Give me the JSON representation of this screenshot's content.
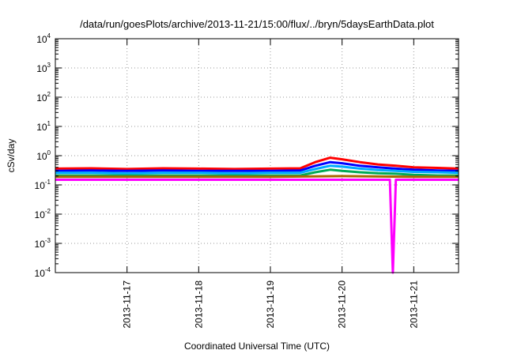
{
  "chart_data": {
    "type": "line",
    "title": "/data/run/goesPlots/archive/2013-11-21/15:00/flux/../bryn/5daysEarthData.plot",
    "xlabel": "Coordinated Universal Time (UTC)",
    "ylabel": "cSv/day",
    "y_scale": "log",
    "ylim": [
      0.0001,
      10000
    ],
    "xlim": [
      "2013-11-16 00:00",
      "2013-11-21 15:00"
    ],
    "grid": true,
    "legend": "none",
    "x_ticks": [
      {
        "value": "2013-11-17 00:00",
        "label": "2013-11-17"
      },
      {
        "value": "2013-11-18 00:00",
        "label": "2013-11-18"
      },
      {
        "value": "2013-11-19 00:00",
        "label": "2013-11-19"
      },
      {
        "value": "2013-11-20 00:00",
        "label": "2013-11-20"
      },
      {
        "value": "2013-11-21 00:00",
        "label": "2013-11-21"
      }
    ],
    "y_ticks": [
      {
        "value": 0.0001,
        "base": "10",
        "exp": "-4"
      },
      {
        "value": 0.001,
        "base": "10",
        "exp": "-3"
      },
      {
        "value": 0.01,
        "base": "10",
        "exp": "-2"
      },
      {
        "value": 0.1,
        "base": "10",
        "exp": "-1"
      },
      {
        "value": 1,
        "base": "10",
        "exp": "0"
      },
      {
        "value": 10,
        "base": "10",
        "exp": "1"
      },
      {
        "value": 100,
        "base": "10",
        "exp": "2"
      },
      {
        "value": 1000,
        "base": "10",
        "exp": "3"
      },
      {
        "value": 10000,
        "base": "10",
        "exp": "4"
      }
    ],
    "series": [
      {
        "color": "#ff0000",
        "x": [
          "2013-11-16 00:00",
          "2013-11-16 12:00",
          "2013-11-17 00:00",
          "2013-11-17 12:00",
          "2013-11-18 00:00",
          "2013-11-18 12:00",
          "2013-11-19 00:00",
          "2013-11-19 10:00",
          "2013-11-19 15:00",
          "2013-11-19 20:00",
          "2013-11-20 00:00",
          "2013-11-20 06:00",
          "2013-11-20 12:00",
          "2013-11-20 18:00",
          "2013-11-21 00:00",
          "2013-11-21 08:00",
          "2013-11-21 15:00"
        ],
        "y": [
          0.36,
          0.37,
          0.35,
          0.37,
          0.36,
          0.35,
          0.36,
          0.37,
          0.6,
          0.85,
          0.75,
          0.6,
          0.5,
          0.45,
          0.4,
          0.38,
          0.36
        ]
      },
      {
        "color": "#0000ff",
        "x": [
          "2013-11-16 00:00",
          "2013-11-16 12:00",
          "2013-11-17 00:00",
          "2013-11-17 12:00",
          "2013-11-18 00:00",
          "2013-11-18 12:00",
          "2013-11-19 00:00",
          "2013-11-19 10:00",
          "2013-11-19 15:00",
          "2013-11-19 20:00",
          "2013-11-20 00:00",
          "2013-11-20 06:00",
          "2013-11-20 12:00",
          "2013-11-20 18:00",
          "2013-11-21 00:00",
          "2013-11-21 08:00",
          "2013-11-21 15:00"
        ],
        "y": [
          0.3,
          0.31,
          0.3,
          0.31,
          0.3,
          0.3,
          0.3,
          0.31,
          0.45,
          0.6,
          0.55,
          0.45,
          0.4,
          0.36,
          0.33,
          0.31,
          0.3
        ]
      },
      {
        "color": "#00aaff",
        "x": [
          "2013-11-16 00:00",
          "2013-11-16 12:00",
          "2013-11-17 00:00",
          "2013-11-17 12:00",
          "2013-11-18 00:00",
          "2013-11-18 12:00",
          "2013-11-19 00:00",
          "2013-11-19 10:00",
          "2013-11-19 15:00",
          "2013-11-19 20:00",
          "2013-11-20 00:00",
          "2013-11-20 06:00",
          "2013-11-20 12:00",
          "2013-11-20 18:00",
          "2013-11-21 00:00",
          "2013-11-21 08:00",
          "2013-11-21 15:00"
        ],
        "y": [
          0.26,
          0.26,
          0.25,
          0.26,
          0.26,
          0.25,
          0.26,
          0.26,
          0.35,
          0.45,
          0.42,
          0.36,
          0.32,
          0.3,
          0.28,
          0.27,
          0.26
        ]
      },
      {
        "color": "#00aa55",
        "x": [
          "2013-11-16 00:00",
          "2013-11-16 12:00",
          "2013-11-17 00:00",
          "2013-11-17 12:00",
          "2013-11-18 00:00",
          "2013-11-18 12:00",
          "2013-11-19 00:00",
          "2013-11-19 10:00",
          "2013-11-19 15:00",
          "2013-11-19 20:00",
          "2013-11-20 00:00",
          "2013-11-20 06:00",
          "2013-11-20 12:00",
          "2013-11-20 18:00",
          "2013-11-21 00:00",
          "2013-11-21 08:00",
          "2013-11-21 15:00"
        ],
        "y": [
          0.21,
          0.21,
          0.21,
          0.21,
          0.21,
          0.21,
          0.21,
          0.21,
          0.27,
          0.33,
          0.3,
          0.27,
          0.25,
          0.24,
          0.22,
          0.21,
          0.21
        ]
      },
      {
        "color": "#aa6600",
        "x": [
          "2013-11-16 00:00",
          "2013-11-17 00:00",
          "2013-11-18 00:00",
          "2013-11-19 00:00",
          "2013-11-20 00:00",
          "2013-11-21 00:00",
          "2013-11-21 15:00"
        ],
        "y": [
          0.19,
          0.19,
          0.19,
          0.19,
          0.2,
          0.19,
          0.19
        ]
      },
      {
        "color": "#ff00ff",
        "x": [
          "2013-11-16 00:00",
          "2013-11-16 12:00",
          "2013-11-17 00:00",
          "2013-11-17 12:00",
          "2013-11-18 00:00",
          "2013-11-18 12:00",
          "2013-11-19 00:00",
          "2013-11-19 12:00",
          "2013-11-20 00:00",
          "2013-11-20 12:00",
          "2013-11-20 16:00",
          "2013-11-20 17:00",
          "2013-11-20 18:00",
          "2013-11-21 00:00",
          "2013-11-21 15:00"
        ],
        "y": [
          0.15,
          0.15,
          0.15,
          0.15,
          0.15,
          0.15,
          0.15,
          0.15,
          0.15,
          0.15,
          0.15,
          0.0001,
          0.15,
          0.15,
          0.15
        ]
      }
    ]
  }
}
